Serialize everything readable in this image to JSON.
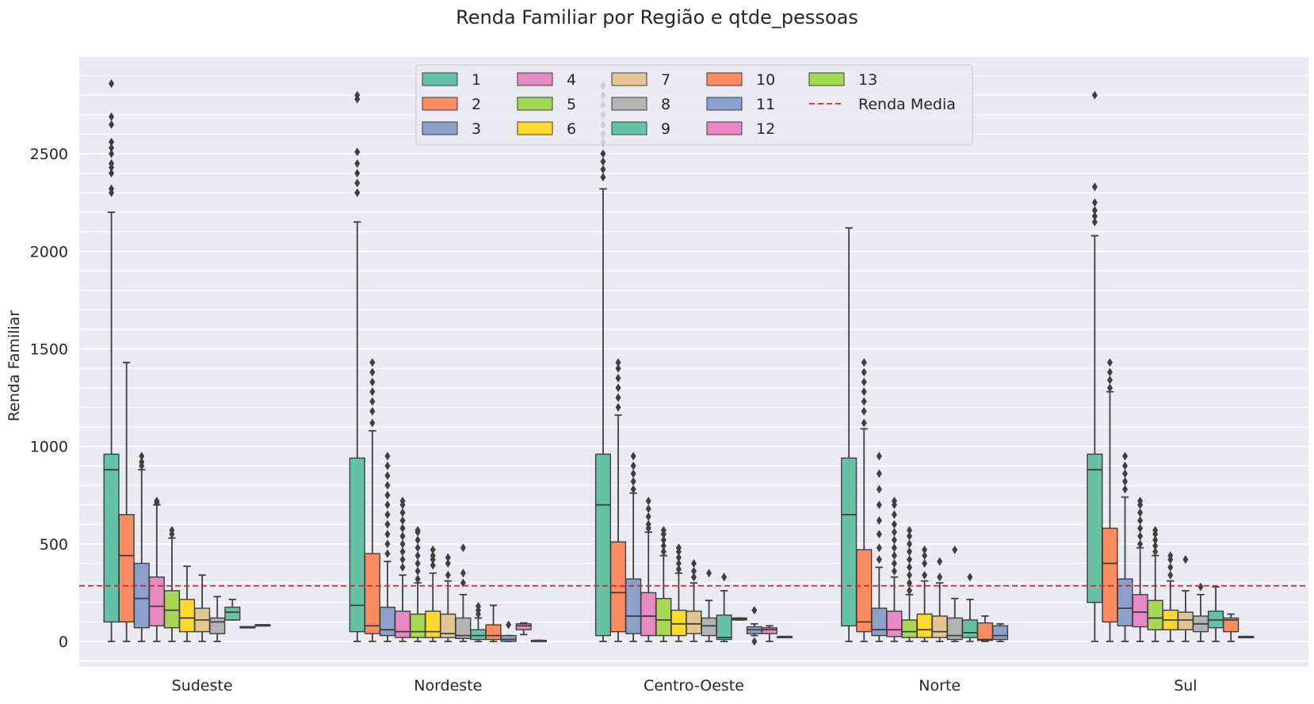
{
  "chart_data": {
    "type": "box",
    "title": "Renda Familiar por Região e qtde_pessoas",
    "xlabel": "",
    "ylabel": "Renda Familiar",
    "ylim": [
      -130,
      3000
    ],
    "yticks": [
      0,
      500,
      1000,
      1500,
      2000,
      2500
    ],
    "grid": true,
    "legend_placement": "top-center",
    "categories": [
      "Sudeste",
      "Nordeste",
      "Centro-Oeste",
      "Norte",
      "Sul"
    ],
    "hue_levels": [
      "1",
      "2",
      "3",
      "4",
      "5",
      "6",
      "7",
      "8",
      "9",
      "10",
      "11",
      "12",
      "13"
    ],
    "palette": [
      "#66c2a5",
      "#fc8d62",
      "#8da0cb",
      "#e78ac3",
      "#a6d854",
      "#ffd92f",
      "#e5c494",
      "#b3b3b3",
      "#66c2a5",
      "#fc8d62",
      "#8da0cb",
      "#e78ac3",
      "#a6d854"
    ],
    "reference_line": {
      "label": "Renda Media",
      "value": 285,
      "color": "#d62728"
    },
    "series": [
      {
        "name": "1",
        "boxes": [
          {
            "min": 0,
            "q1": 100,
            "median": 880,
            "q3": 960,
            "max": 2200,
            "outliers": [
              2300,
              2320,
              2400,
              2430,
              2450,
              2500,
              2530,
              2560,
              2650,
              2690,
              2860
            ]
          },
          {
            "min": 0,
            "q1": 50,
            "median": 185,
            "q3": 940,
            "max": 2150,
            "outliers": [
              2300,
              2350,
              2400,
              2450,
              2510,
              2780,
              2800
            ]
          },
          {
            "min": 0,
            "q1": 30,
            "median": 700,
            "q3": 960,
            "max": 2320,
            "outliers": [
              2380,
              2420,
              2460,
              2500,
              2560,
              2600,
              2650,
              2700,
              2750,
              2800,
              2850
            ]
          },
          {
            "min": 0,
            "q1": 80,
            "median": 650,
            "q3": 940,
            "max": 2120,
            "outliers": []
          },
          {
            "min": 0,
            "q1": 200,
            "median": 880,
            "q3": 960,
            "max": 2080,
            "outliers": [
              2150,
              2180,
              2210,
              2250,
              2330,
              2800
            ]
          }
        ]
      },
      {
        "name": "2",
        "boxes": [
          {
            "min": 0,
            "q1": 100,
            "median": 440,
            "q3": 650,
            "max": 1430,
            "outliers": []
          },
          {
            "min": 0,
            "q1": 40,
            "median": 80,
            "q3": 450,
            "max": 1080,
            "outliers": [
              1120,
              1180,
              1230,
              1280,
              1330,
              1380,
              1430
            ]
          },
          {
            "min": 0,
            "q1": 50,
            "median": 250,
            "q3": 510,
            "max": 1160,
            "outliers": [
              1200,
              1250,
              1300,
              1350,
              1400,
              1430
            ]
          },
          {
            "min": 0,
            "q1": 50,
            "median": 100,
            "q3": 470,
            "max": 1090,
            "outliers": [
              1120,
              1180,
              1230,
              1280,
              1330,
              1380,
              1430
            ]
          },
          {
            "min": 0,
            "q1": 100,
            "median": 400,
            "q3": 580,
            "max": 1280,
            "outliers": [
              1300,
              1340,
              1380,
              1430
            ]
          }
        ]
      },
      {
        "name": "3",
        "boxes": [
          {
            "min": 0,
            "q1": 70,
            "median": 220,
            "q3": 400,
            "max": 880,
            "outliers": [
              900,
              920,
              950
            ]
          },
          {
            "min": 0,
            "q1": 30,
            "median": 60,
            "q3": 175,
            "max": 410,
            "outliers": [
              450,
              500,
              550,
              600,
              650,
              700,
              750,
              800,
              850,
              900,
              950
            ]
          },
          {
            "min": 0,
            "q1": 40,
            "median": 130,
            "q3": 320,
            "max": 760,
            "outliers": [
              780,
              820,
              860,
              900,
              950
            ]
          },
          {
            "min": 0,
            "q1": 30,
            "median": 60,
            "q3": 170,
            "max": 380,
            "outliers": [
              420,
              480,
              550,
              620,
              700,
              780,
              860,
              950
            ]
          },
          {
            "min": 0,
            "q1": 80,
            "median": 170,
            "q3": 320,
            "max": 740,
            "outliers": [
              780,
              820,
              860,
              900,
              950
            ]
          }
        ]
      },
      {
        "name": "4",
        "boxes": [
          {
            "min": 0,
            "q1": 80,
            "median": 180,
            "q3": 330,
            "max": 700,
            "outliers": [
              710,
              720
            ]
          },
          {
            "min": 0,
            "q1": 20,
            "median": 50,
            "q3": 155,
            "max": 340,
            "outliers": [
              380,
              420,
              460,
              500,
              540,
              580,
              620,
              660,
              700,
              720
            ]
          },
          {
            "min": 0,
            "q1": 30,
            "median": 130,
            "q3": 250,
            "max": 560,
            "outliers": [
              580,
              600,
              640,
              680,
              720
            ]
          },
          {
            "min": 0,
            "q1": 25,
            "median": 60,
            "q3": 155,
            "max": 330,
            "outliers": [
              360,
              400,
              440,
              480,
              520,
              560,
              600,
              650,
              700,
              720
            ]
          },
          {
            "min": 0,
            "q1": 75,
            "median": 150,
            "q3": 240,
            "max": 480,
            "outliers": [
              500,
              540,
              580,
              620,
              660,
              700,
              720
            ]
          }
        ]
      },
      {
        "name": "5",
        "boxes": [
          {
            "min": 0,
            "q1": 70,
            "median": 160,
            "q3": 260,
            "max": 530,
            "outliers": [
              550,
              570
            ]
          },
          {
            "min": 0,
            "q1": 20,
            "median": 50,
            "q3": 140,
            "max": 300,
            "outliers": [
              320,
              360,
              400,
              440,
              480,
              520,
              560,
              570
            ]
          },
          {
            "min": 0,
            "q1": 30,
            "median": 110,
            "q3": 220,
            "max": 440,
            "outliers": [
              460,
              490,
              520,
              550,
              570
            ]
          },
          {
            "min": 0,
            "q1": 20,
            "median": 50,
            "q3": 110,
            "max": 240,
            "outliers": [
              260,
              300,
              340,
              380,
              420,
              460,
              500,
              540,
              570
            ]
          },
          {
            "min": 0,
            "q1": 60,
            "median": 120,
            "q3": 210,
            "max": 440,
            "outliers": [
              460,
              490,
              520,
              550,
              570
            ]
          }
        ]
      },
      {
        "name": "6",
        "boxes": [
          {
            "min": 0,
            "q1": 50,
            "median": 120,
            "q3": 215,
            "max": 385,
            "outliers": []
          },
          {
            "min": 0,
            "q1": 20,
            "median": 50,
            "q3": 155,
            "max": 350,
            "outliers": [
              390,
              420,
              440,
              470
            ]
          },
          {
            "min": 0,
            "q1": 30,
            "median": 90,
            "q3": 160,
            "max": 350,
            "outliers": [
              370,
              400,
              430,
              460,
              480
            ]
          },
          {
            "min": 0,
            "q1": 20,
            "median": 60,
            "q3": 140,
            "max": 310,
            "outliers": [
              340,
              400,
              440,
              470
            ]
          },
          {
            "min": 0,
            "q1": 60,
            "median": 110,
            "q3": 160,
            "max": 310,
            "outliers": [
              340,
              380,
              420,
              440
            ]
          }
        ]
      },
      {
        "name": "7",
        "boxes": [
          {
            "min": 0,
            "q1": 50,
            "median": 110,
            "q3": 170,
            "max": 340,
            "outliers": []
          },
          {
            "min": 0,
            "q1": 20,
            "median": 40,
            "q3": 140,
            "max": 310,
            "outliers": [
              340,
              400,
              430
            ]
          },
          {
            "min": 0,
            "q1": 40,
            "median": 90,
            "q3": 155,
            "max": 300,
            "outliers": [
              330,
              360,
              400
            ]
          },
          {
            "min": 0,
            "q1": 20,
            "median": 50,
            "q3": 130,
            "max": 300,
            "outliers": [
              330,
              410
            ]
          },
          {
            "min": 0,
            "q1": 60,
            "median": 110,
            "q3": 150,
            "max": 260,
            "outliers": [
              420
            ]
          }
        ]
      },
      {
        "name": "8",
        "boxes": [
          {
            "min": 0,
            "q1": 40,
            "median": 100,
            "q3": 120,
            "max": 230,
            "outliers": []
          },
          {
            "min": 0,
            "q1": 15,
            "median": 30,
            "q3": 120,
            "max": 240,
            "outliers": [
              300,
              350,
              480
            ]
          },
          {
            "min": 0,
            "q1": 30,
            "median": 80,
            "q3": 120,
            "max": 210,
            "outliers": [
              350
            ]
          },
          {
            "min": 0,
            "q1": 10,
            "median": 30,
            "q3": 120,
            "max": 220,
            "outliers": [
              470
            ]
          },
          {
            "min": 0,
            "q1": 50,
            "median": 90,
            "q3": 130,
            "max": 240,
            "outliers": [
              280
            ]
          }
        ]
      },
      {
        "name": "9",
        "boxes": [
          {
            "min": 110,
            "q1": 110,
            "median": 150,
            "q3": 175,
            "max": 215,
            "outliers": []
          },
          {
            "min": 0,
            "q1": 10,
            "median": 30,
            "q3": 60,
            "max": 120,
            "outliers": [
              140,
              160,
              180
            ]
          },
          {
            "min": 0,
            "q1": 10,
            "median": 20,
            "q3": 135,
            "max": 260,
            "outliers": [
              330
            ]
          },
          {
            "min": 0,
            "q1": 20,
            "median": 45,
            "q3": 110,
            "max": 215,
            "outliers": [
              330
            ]
          },
          {
            "min": 0,
            "q1": 70,
            "median": 110,
            "q3": 155,
            "max": 280,
            "outliers": []
          }
        ]
      },
      {
        "name": "10",
        "boxes": [
          {
            "min": 75,
            "q1": 75,
            "median": 75,
            "q3": 75,
            "max": 75,
            "outliers": []
          },
          {
            "min": 0,
            "q1": 10,
            "median": 30,
            "q3": 85,
            "max": 185,
            "outliers": []
          },
          {
            "min": 110,
            "q1": 110,
            "median": 115,
            "q3": 120,
            "max": 120,
            "outliers": []
          },
          {
            "min": 0,
            "q1": 5,
            "median": 10,
            "q3": 95,
            "max": 130,
            "outliers": []
          },
          {
            "min": 0,
            "q1": 50,
            "median": 110,
            "q3": 120,
            "max": 140,
            "outliers": []
          }
        ]
      },
      {
        "name": "11",
        "boxes": [
          {
            "min": 85,
            "q1": 85,
            "median": 85,
            "q3": 85,
            "max": 85,
            "outliers": []
          },
          {
            "min": 0,
            "q1": 0,
            "median": 10,
            "q3": 30,
            "max": 30,
            "outliers": [
              85
            ]
          },
          {
            "min": 30,
            "q1": 40,
            "median": 60,
            "q3": 75,
            "max": 90,
            "outliers": [
              0,
              160
            ]
          },
          {
            "min": 0,
            "q1": 10,
            "median": 30,
            "q3": 80,
            "max": 90,
            "outliers": []
          },
          {
            "min": 25,
            "q1": 25,
            "median": 25,
            "q3": 25,
            "max": 25,
            "outliers": []
          }
        ]
      },
      {
        "name": "12",
        "boxes": [
          null,
          {
            "min": 35,
            "q1": 60,
            "median": 80,
            "q3": 90,
            "max": 95,
            "outliers": []
          },
          {
            "min": 0,
            "q1": 40,
            "median": 60,
            "q3": 70,
            "max": 80,
            "outliers": []
          },
          null,
          null
        ]
      },
      {
        "name": "13",
        "boxes": [
          null,
          {
            "min": 5,
            "q1": 5,
            "median": 5,
            "q3": 5,
            "max": 5,
            "outliers": []
          },
          {
            "min": 25,
            "q1": 25,
            "median": 25,
            "q3": 25,
            "max": 25,
            "outliers": []
          },
          null,
          null
        ]
      }
    ]
  }
}
